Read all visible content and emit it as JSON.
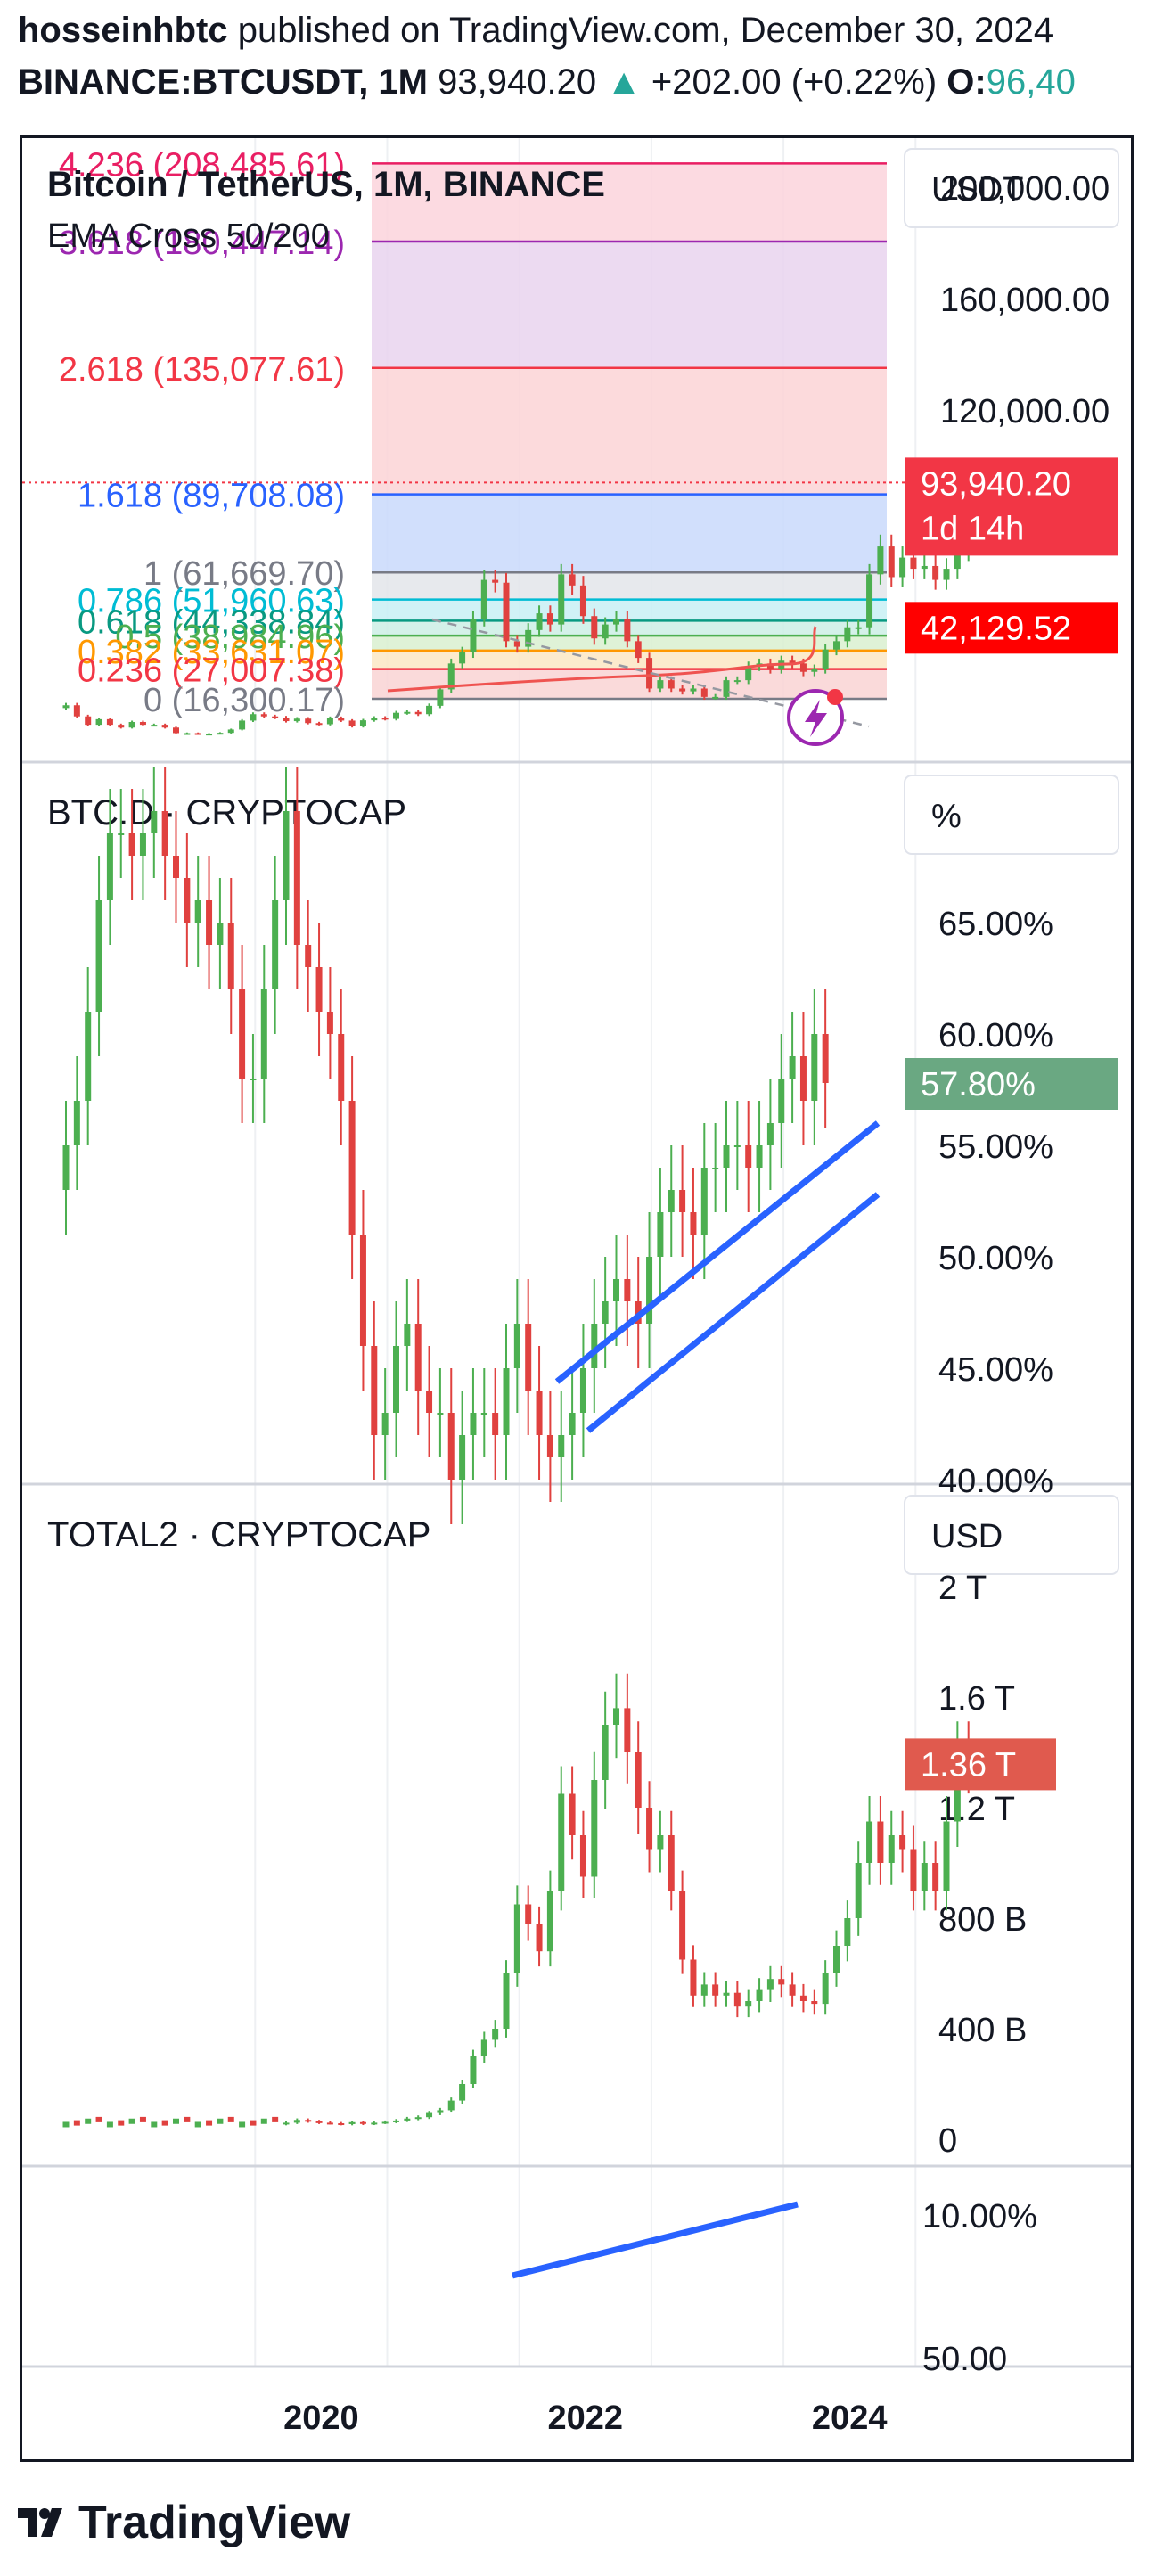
{
  "header": {
    "author": "hosseinhbtc",
    "published": "published on TradingView.com, December 30, 2024",
    "symbol": "BINANCE:BTCUSDT, 1M",
    "price": "93,940.20",
    "change_arrow": "▲",
    "change": "+202.00 (+0.22%)",
    "open_label": "O:",
    "open_value": "96,40"
  },
  "colors": {
    "up": "#26a69a",
    "candle_up": "#4caf50",
    "candle_down": "#e0413f",
    "trend": "#2962ff",
    "ema": "#ef5350",
    "grid": "#eef0f3",
    "price_label": "#f23645",
    "btcd_label": "#6aa882",
    "total2_label": "#e05a4e"
  },
  "footer": {
    "logo": "TradingView"
  },
  "chart_data": [
    {
      "type": "candlestick",
      "title": "Bitcoin / TetherUS, 1M, BINANCE",
      "indicator": "EMA Cross 50/200",
      "unit": "USDT",
      "y_ticks": [
        "200,000.00",
        "160,000.00",
        "120,000.00"
      ],
      "fib_levels": [
        {
          "ratio": "4.236",
          "value": "208,485.61",
          "text": "4.236 (208,485.61)",
          "color": "#e91e63"
        },
        {
          "ratio": "3.618",
          "value": "180,447.14",
          "text": "3.618 (180,447.14)",
          "color": "#9c27b0"
        },
        {
          "ratio": "2.618",
          "value": "135,077.61",
          "text": "2.618 (135,077.61)",
          "color": "#f23645"
        },
        {
          "ratio": "1.618",
          "value": "89,708.08",
          "text": "1.618 (89,708.08)",
          "color": "#2962ff"
        },
        {
          "ratio": "1",
          "value": "61,669.70",
          "text": "1 (61,669.70)",
          "color": "#787b86"
        },
        {
          "ratio": "0.786",
          "value": "51,960.63",
          "text": "0.786 (51,960.63)",
          "color": "#00bcd4"
        },
        {
          "ratio": "0.618",
          "value": "44,338.84",
          "text": "0.618 (44,338.84)",
          "color": "#089981"
        },
        {
          "ratio": "0.5",
          "value": "38,984.96",
          "text": "0.5 (38,984.96)",
          "color": "#4caf50"
        },
        {
          "ratio": "0.382",
          "value": "33,631.07",
          "text": "0.382 (33,631.07)",
          "color": "#ff9800"
        },
        {
          "ratio": "0.236",
          "value": "27,007.38",
          "text": "0.236 (27,007.38)",
          "color": "#f23645"
        },
        {
          "ratio": "0",
          "value": "16,300.17",
          "text": "0 (16,300.17)",
          "color": "#787b86"
        }
      ],
      "last_price": "93,940.20",
      "countdown": "1d 14h",
      "ema_value": "42,129.52",
      "ylim": [
        0,
        215000
      ]
    },
    {
      "type": "candlestick",
      "title": "BTC.D · CRYPTOCAP",
      "unit": "%",
      "y_ticks": [
        "65.00%",
        "60.00%",
        "55.00%",
        "50.00%",
        "45.00%",
        "40.00%"
      ],
      "last_value": "57.80%",
      "ylim": [
        38,
        72
      ],
      "close_series": [
        55,
        57,
        61,
        66,
        69,
        69,
        68,
        69,
        70,
        68,
        67,
        65,
        66,
        64,
        65,
        62,
        58,
        58,
        62,
        66,
        70,
        64,
        63,
        61,
        60,
        57,
        51,
        46,
        42,
        43,
        46,
        47,
        44,
        43,
        43,
        40,
        42,
        43,
        43,
        42,
        45,
        47,
        44,
        42,
        41,
        42,
        43,
        45,
        47,
        48,
        49,
        48,
        47,
        50,
        52,
        53,
        52,
        51,
        54,
        54,
        55,
        55,
        54,
        55,
        56,
        58,
        59,
        57,
        60,
        57.8
      ]
    },
    {
      "type": "candlestick",
      "title": "TOTAL2 · CRYPTOCAP",
      "unit": "USD",
      "y_ticks": [
        "2 T",
        "1.6 T",
        "1.2 T",
        "800 B",
        "400 B",
        "0"
      ],
      "last_value": "1.36 T",
      "ylim": [
        0,
        2000
      ],
      "close_series": [
        60,
        70,
        65,
        60,
        58,
        55,
        62,
        56,
        60,
        63,
        68,
        75,
        80,
        95,
        105,
        140,
        200,
        300,
        360,
        400,
        600,
        850,
        780,
        680,
        900,
        1250,
        1100,
        950,
        1300,
        1500,
        1560,
        1400,
        1200,
        1050,
        1100,
        900,
        650,
        520,
        560,
        520,
        530,
        480,
        500,
        540,
        580,
        560,
        520,
        500,
        490,
        600,
        700,
        800,
        1000,
        1150,
        1000,
        1100,
        1050,
        900,
        1000,
        900,
        1150,
        1400,
        1360
      ]
    },
    {
      "type": "line",
      "title": "",
      "y_ticks": [
        "10.00%",
        "50.00"
      ]
    }
  ],
  "x_ticks": [
    "2020",
    "2022",
    "2024"
  ]
}
